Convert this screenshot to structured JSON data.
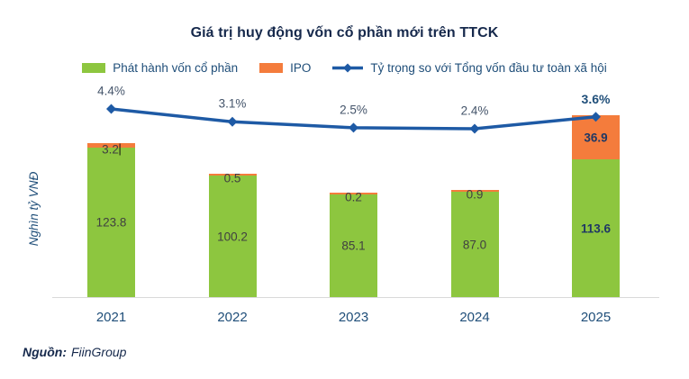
{
  "title": "Giá trị huy động vốn cổ phần mới trên TTCK",
  "y_axis_label": "Nghìn tỷ VNĐ",
  "source": {
    "prefix": "Nguồn:",
    "name": "FiinGroup"
  },
  "legend": [
    {
      "label": "Phát hành vốn cổ phần",
      "symbol": "swatch",
      "color": "#8DC63F"
    },
    {
      "label": "IPO",
      "symbol": "swatch",
      "color": "#F47C3C"
    },
    {
      "label": "Tỷ trọng so với Tổng vốn đầu tư toàn xã hội",
      "symbol": "line-marker",
      "color": "#1E5AA5"
    }
  ],
  "chart_data": {
    "type": "bar",
    "subtype": "stacked-bar-with-line",
    "title": "Giá trị huy động vốn cổ phần mới trên TTCK",
    "ylabel": "Nghìn tỷ VNĐ",
    "categories": [
      "2021",
      "2022",
      "2023",
      "2024",
      "2025"
    ],
    "series": [
      {
        "name": "Phát hành vốn cổ phần",
        "values": [
          123.8,
          100.2,
          85.1,
          87.0,
          113.6
        ],
        "labels": [
          "123.8",
          "100.2",
          "85.1",
          "87.0",
          "113.6"
        ],
        "color": "#8DC63F"
      },
      {
        "name": "IPO",
        "values": [
          3.2,
          0.5,
          0.2,
          0.9,
          36.9
        ],
        "labels": [
          "3.2",
          "0.5",
          "0.2",
          "0.9",
          "36.9"
        ],
        "color": "#F47C3C"
      }
    ],
    "line_series": {
      "name": "Tỷ trọng so với Tổng vốn đầu tư toàn xã hội",
      "values": [
        4.4,
        3.1,
        2.5,
        2.4,
        3.6
      ],
      "labels": [
        "4.4%",
        "3.1%",
        "2.5%",
        "2.4%",
        "3.6%"
      ],
      "color": "#1E5AA5"
    },
    "highlight_index": 4,
    "text_cursor_artifact": {
      "series_index": 1,
      "point_index": 0
    },
    "bar_value_range": [
      0,
      160
    ],
    "grid": false,
    "legend_position": "top"
  },
  "colors": {
    "green_bar": "#8DC63F",
    "orange_bar": "#F47C3C",
    "line_blue": "#1E5AA5",
    "navy_text": "#1F4E79",
    "dark_title": "#16294C",
    "highlight_label": "#1F3864",
    "bar_label_gray": "#404040",
    "axis_gray": "#D9D9D9"
  }
}
